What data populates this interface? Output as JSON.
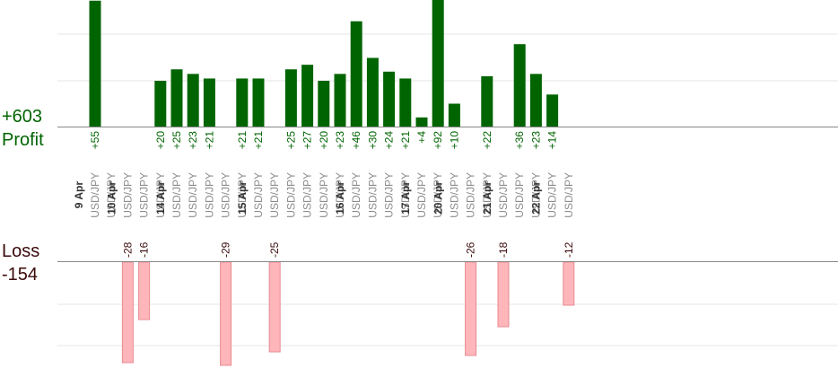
{
  "summary": {
    "profit_total": "+603",
    "profit_label": "Profit",
    "loss_label": "Loss",
    "loss_total": "-154"
  },
  "colors": {
    "profit_bar": "#006400",
    "profit_text": "#006400",
    "loss_fill": "#ffb6bb",
    "loss_stroke": "#e88a92",
    "loss_text": "#3a0a0a",
    "grid": "#e6e6e6",
    "axis": "#888888",
    "date_text": "#333333",
    "pair_text": "#8c8c8c"
  },
  "chart_data": {
    "type": "bar",
    "title": "",
    "xlabel": "",
    "ylabel": "",
    "profit_ylim": [
      0,
      56
    ],
    "loss_ylim": [
      -29,
      0
    ],
    "grid": true,
    "dates": [
      "9 Apr",
      "10 Apr",
      "14 Apr",
      "15 Apr",
      "16 Apr",
      "17 Apr",
      "20 Apr",
      "21 Apr",
      "22 Apr"
    ],
    "trades": [
      {
        "date": "9 Apr",
        "pair": "USD/JPY",
        "value": 55
      },
      {
        "date": "9 Apr",
        "pair": "USD/JPY",
        "value": null
      },
      {
        "date": "10 Apr",
        "pair": "USD/JPY",
        "value": -28
      },
      {
        "date": "10 Apr",
        "pair": "USD/JPY",
        "value": -16
      },
      {
        "date": "10 Apr",
        "pair": "USD/JPY",
        "value": 20
      },
      {
        "date": "14 Apr",
        "pair": "USD/JPY",
        "value": 25
      },
      {
        "date": "14 Apr",
        "pair": "USD/JPY",
        "value": 23
      },
      {
        "date": "14 Apr",
        "pair": "USD/JPY",
        "value": 21
      },
      {
        "date": "14 Apr",
        "pair": "USD/JPY",
        "value": -29
      },
      {
        "date": "14 Apr",
        "pair": "USD/JPY",
        "value": 21
      },
      {
        "date": "15 Apr",
        "pair": "USD/JPY",
        "value": 21
      },
      {
        "date": "15 Apr",
        "pair": "USD/JPY",
        "value": -25
      },
      {
        "date": "15 Apr",
        "pair": "USD/JPY",
        "value": 25
      },
      {
        "date": "15 Apr",
        "pair": "USD/JPY",
        "value": 27
      },
      {
        "date": "15 Apr",
        "pair": "USD/JPY",
        "value": 20
      },
      {
        "date": "15 Apr",
        "pair": "USD/JPY",
        "value": 23
      },
      {
        "date": "16 Apr",
        "pair": "USD/JPY",
        "value": 46
      },
      {
        "date": "16 Apr",
        "pair": "USD/JPY",
        "value": 30
      },
      {
        "date": "16 Apr",
        "pair": "USD/JPY",
        "value": 24
      },
      {
        "date": "16 Apr",
        "pair": "USD/JPY",
        "value": 21
      },
      {
        "date": "17 Apr",
        "pair": "USD/JPY",
        "value": 4
      },
      {
        "date": "17 Apr",
        "pair": "USD/JPY",
        "value": 92
      },
      {
        "date": "20 Apr",
        "pair": "USD/JPY",
        "value": 10
      },
      {
        "date": "20 Apr",
        "pair": "USD/JPY",
        "value": -26
      },
      {
        "date": "20 Apr",
        "pair": "USD/JPY",
        "value": 22
      },
      {
        "date": "21 Apr",
        "pair": "USD/JPY",
        "value": -18
      },
      {
        "date": "21 Apr",
        "pair": "USD/JPY",
        "value": 36
      },
      {
        "date": "21 Apr",
        "pair": "USD/JPY",
        "value": 23
      },
      {
        "date": "22 Apr",
        "pair": "USD/JPY",
        "value": 14
      },
      {
        "date": "22 Apr",
        "pair": "USD/JPY",
        "value": -12
      }
    ]
  }
}
